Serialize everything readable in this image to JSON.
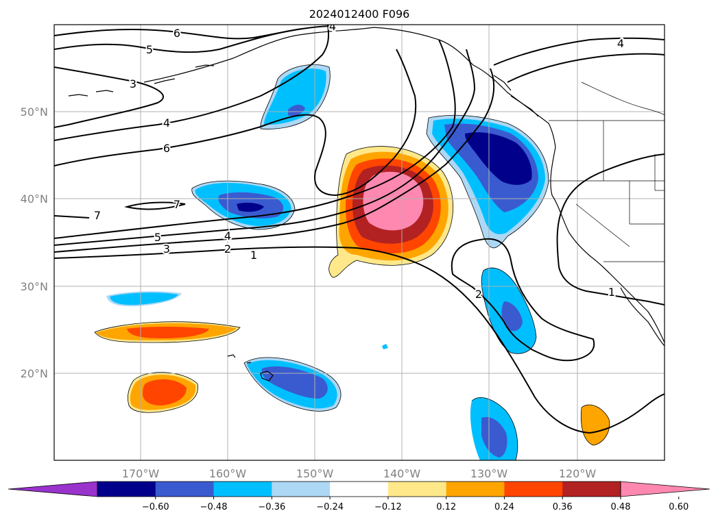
{
  "title": "2024012400 F096",
  "lat_labels": [
    "50°N",
    "40°N",
    "30°N",
    "20°N"
  ],
  "lon_labels": [
    "170°W",
    "160°W",
    "150°W",
    "140°W",
    "130°W",
    "120°W"
  ],
  "colorbar": {
    "ticks": [
      "−0.60",
      "−0.48",
      "−0.36",
      "−0.24",
      "−0.12",
      "0.12",
      "0.24",
      "0.36",
      "0.48",
      "0.60"
    ],
    "colors": [
      "#9933cc",
      "#00008b",
      "#3a5bd0",
      "#00bfff",
      "#add8f5",
      "#ffffff",
      "#ffe88a",
      "#ffa500",
      "#ff4500",
      "#b22222",
      "#ff88b0"
    ]
  },
  "contour_labels": [
    "6",
    "5",
    "3",
    "4",
    "6",
    "7",
    "7",
    "5",
    "3",
    "4",
    "2",
    "1",
    "4",
    "4",
    "2",
    "1"
  ],
  "colors": {
    "frame": "#000000",
    "grid": "#b0b0b0",
    "contour": "#000000"
  }
}
